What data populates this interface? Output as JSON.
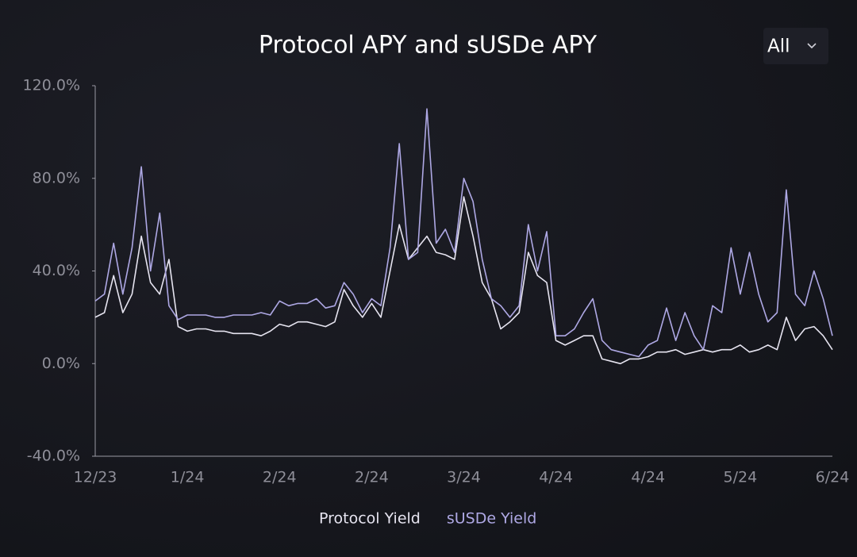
{
  "chart_data": {
    "type": "line",
    "title": "Protocol APY and sUSDe APY",
    "range_selector": "All",
    "categories": [
      "12/23",
      null,
      null,
      null,
      null,
      null,
      null,
      null,
      null,
      null,
      "1/24",
      null,
      null,
      null,
      null,
      null,
      null,
      null,
      null,
      null,
      "2/24",
      null,
      null,
      null,
      null,
      null,
      null,
      null,
      null,
      null,
      "2/24",
      null,
      null,
      null,
      null,
      null,
      null,
      null,
      null,
      null,
      "3/24",
      null,
      null,
      null,
      null,
      null,
      null,
      null,
      null,
      null,
      "4/24",
      null,
      null,
      null,
      null,
      null,
      null,
      null,
      null,
      null,
      "4/24",
      null,
      null,
      null,
      null,
      null,
      null,
      null,
      null,
      null,
      "5/24",
      null,
      null,
      null,
      null,
      null,
      null,
      null,
      null,
      null,
      "6/24"
    ],
    "series": [
      {
        "name": "Protocol Yield",
        "color": "#e6e4f0",
        "values": [
          20,
          22,
          38,
          22,
          30,
          55,
          35,
          30,
          45,
          16,
          14,
          15,
          15,
          14,
          14,
          13,
          13,
          13,
          12,
          14,
          17,
          16,
          18,
          18,
          17,
          16,
          18,
          32,
          25,
          20,
          26,
          20,
          40,
          60,
          45,
          50,
          55,
          48,
          47,
          45,
          72,
          55,
          35,
          28,
          15,
          18,
          22,
          48,
          38,
          35,
          10,
          8,
          10,
          12,
          12,
          2,
          1,
          0,
          2,
          2,
          3,
          5,
          5,
          6,
          4,
          5,
          6,
          5,
          6,
          6,
          8,
          5,
          6,
          8,
          6,
          20,
          10,
          15,
          16,
          12,
          6
        ]
      },
      {
        "name": "sUSDe Yield",
        "color": "#aea8e4",
        "values": [
          27,
          30,
          52,
          30,
          50,
          85,
          40,
          65,
          25,
          19,
          21,
          21,
          21,
          20,
          20,
          21,
          21,
          21,
          22,
          21,
          27,
          25,
          26,
          26,
          28,
          24,
          25,
          35,
          30,
          22,
          28,
          25,
          50,
          95,
          45,
          48,
          110,
          52,
          58,
          48,
          80,
          70,
          45,
          28,
          25,
          20,
          25,
          60,
          40,
          57,
          12,
          12,
          15,
          22,
          28,
          10,
          6,
          5,
          4,
          3,
          8,
          10,
          24,
          10,
          22,
          12,
          6,
          25,
          22,
          50,
          30,
          48,
          30,
          18,
          22,
          75,
          30,
          25,
          40,
          28,
          12
        ]
      }
    ],
    "ylim": [
      -40,
      120
    ],
    "yticks": [
      {
        "value": -40,
        "label": "-40.0%"
      },
      {
        "value": 0,
        "label": "0.0%"
      },
      {
        "value": 40,
        "label": "40.0%"
      },
      {
        "value": 80,
        "label": "80.0%"
      },
      {
        "value": 120,
        "label": "120.0%"
      }
    ],
    "grid": false
  }
}
